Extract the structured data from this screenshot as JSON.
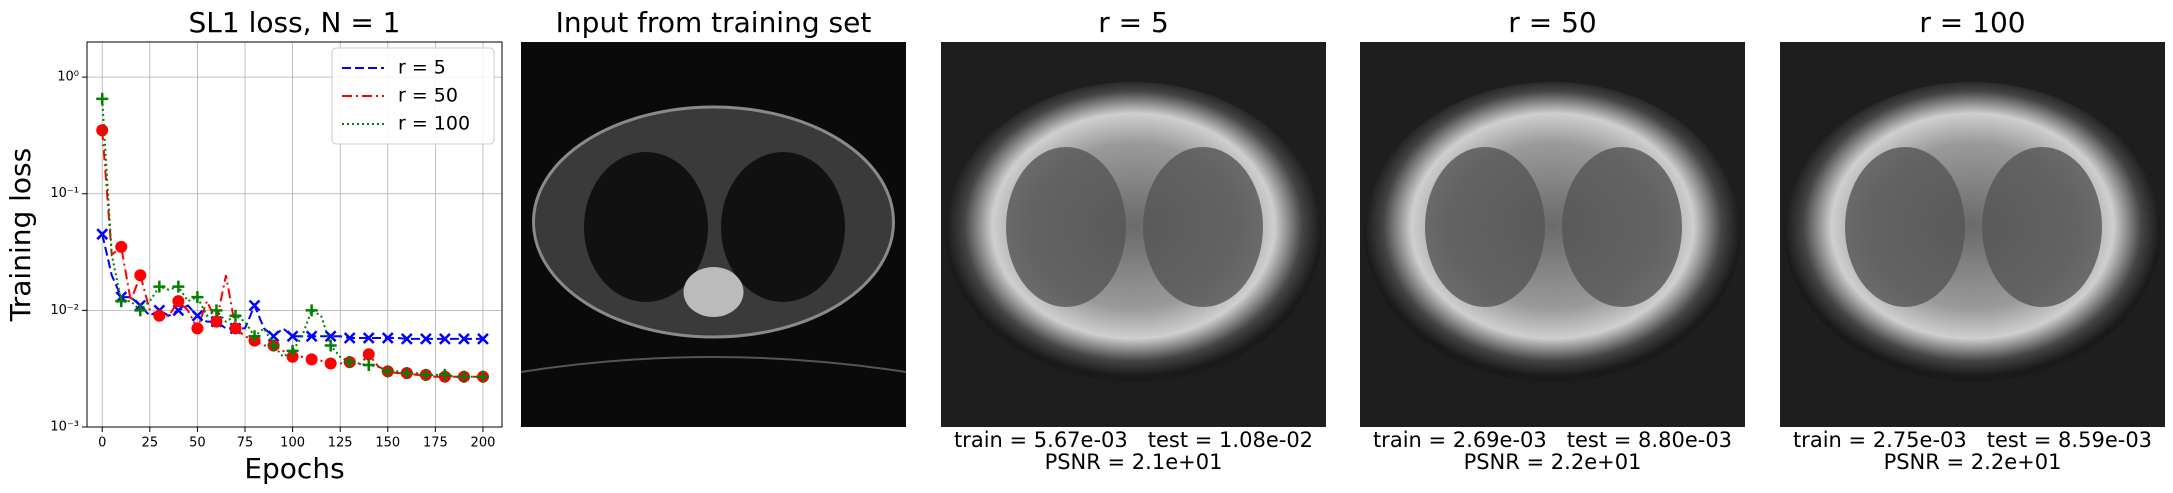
{
  "chart_data": {
    "type": "line",
    "title": "SL1 loss, N = 1",
    "xlabel": "Epochs",
    "ylabel": "Training loss",
    "x": [
      0,
      5,
      10,
      15,
      20,
      25,
      30,
      35,
      40,
      45,
      50,
      55,
      60,
      65,
      70,
      75,
      80,
      85,
      90,
      95,
      100,
      105,
      110,
      115,
      120,
      125,
      130,
      135,
      140,
      145,
      150,
      155,
      160,
      165,
      170,
      175,
      180,
      185,
      190,
      195,
      200
    ],
    "series": [
      {
        "name": "r = 5",
        "color": "#0000ff",
        "linestyle": "dashed",
        "marker": "x",
        "values": [
          0.045,
          0.02,
          0.013,
          0.013,
          0.011,
          0.009,
          0.01,
          0.009,
          0.01,
          0.011,
          0.009,
          0.008,
          0.008,
          0.007,
          0.007,
          0.007,
          0.011,
          0.007,
          0.006,
          0.007,
          0.006,
          0.006,
          0.006,
          0.006,
          0.006,
          0.006,
          0.0058,
          0.0058,
          0.0058,
          0.0058,
          0.0058,
          0.0058,
          0.0057,
          0.0057,
          0.0057,
          0.0057,
          0.0057,
          0.0057,
          0.0057,
          0.0057,
          0.0057
        ]
      },
      {
        "name": "r = 50",
        "color": "#ff0000",
        "linestyle": "dashdot",
        "marker": "o",
        "values": [
          0.35,
          0.03,
          0.035,
          0.012,
          0.02,
          0.01,
          0.009,
          0.009,
          0.012,
          0.01,
          0.007,
          0.012,
          0.008,
          0.02,
          0.007,
          0.006,
          0.0055,
          0.005,
          0.005,
          0.0045,
          0.004,
          0.004,
          0.0038,
          0.0037,
          0.0035,
          0.0035,
          0.0036,
          0.0034,
          0.0042,
          0.0033,
          0.003,
          0.0029,
          0.0029,
          0.0028,
          0.0028,
          0.0027,
          0.0027,
          0.0027,
          0.0027,
          0.0027,
          0.0027
        ]
      },
      {
        "name": "r = 100",
        "color": "#008000",
        "linestyle": "dotted",
        "marker": "+",
        "values": [
          0.65,
          0.03,
          0.012,
          0.012,
          0.01,
          0.012,
          0.016,
          0.015,
          0.016,
          0.012,
          0.013,
          0.009,
          0.01,
          0.008,
          0.009,
          0.008,
          0.006,
          0.007,
          0.005,
          0.004,
          0.0045,
          0.006,
          0.01,
          0.009,
          0.005,
          0.004,
          0.0036,
          0.0035,
          0.0034,
          0.0033,
          0.003,
          0.003,
          0.0029,
          0.0029,
          0.0028,
          0.0028,
          0.0028,
          0.0027,
          0.0027,
          0.0027,
          0.0027
        ]
      }
    ],
    "xlim": [
      -8,
      210
    ],
    "xticks": [
      0,
      25,
      50,
      75,
      100,
      125,
      150,
      175,
      200
    ],
    "ylim": [
      0.001,
      2
    ],
    "log_y": true,
    "yticks": [
      {
        "value": 0.001,
        "label": "10⁻³"
      },
      {
        "value": 0.01,
        "label": "10⁻²"
      },
      {
        "value": 0.1,
        "label": "10⁻¹"
      },
      {
        "value": 1,
        "label": "10⁰"
      }
    ],
    "grid": true,
    "legend": "upper right"
  },
  "panels": [
    {
      "title": "Input from training set"
    },
    {
      "title": "r = 5",
      "caption": "train = 5.67e-03   test = 1.08e-02",
      "psnr": "PSNR = 2.1e+01"
    },
    {
      "title": "r = 50",
      "caption": "train = 2.69e-03   test = 8.80e-03",
      "psnr": "PSNR = 2.2e+01"
    },
    {
      "title": "r = 100",
      "caption": "train = 2.75e-03   test = 8.59e-03",
      "psnr": "PSNR = 2.2e+01"
    }
  ]
}
